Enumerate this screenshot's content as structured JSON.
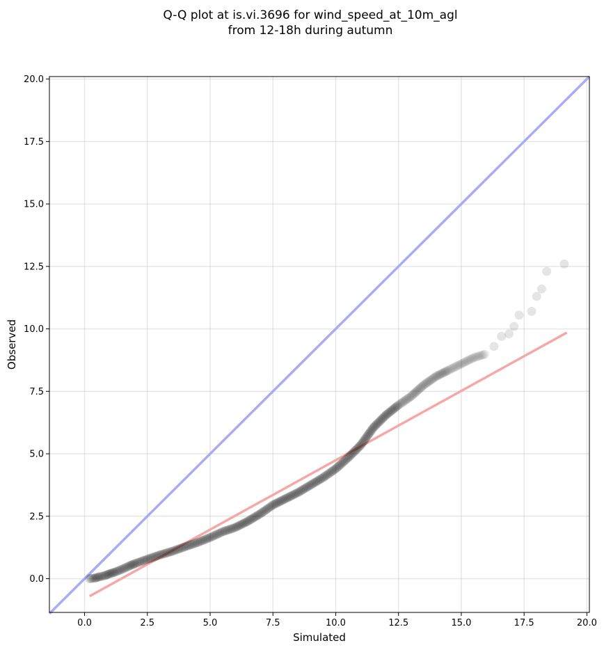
{
  "chart_data": {
    "type": "scatter",
    "title": [
      "Q-Q plot at is.vi.3696 for wind_speed_at_10m_agl",
      "from 12-18h during autumn"
    ],
    "xlabel": "Simulated",
    "ylabel": "Observed",
    "xlim": [
      -1.4,
      20.1
    ],
    "ylim": [
      -1.35,
      20.1
    ],
    "x_ticks": [
      "0.0",
      "2.5",
      "5.0",
      "7.5",
      "10.0",
      "12.5",
      "15.0",
      "17.5",
      "20.0"
    ],
    "y_ticks": [
      "0.0",
      "2.5",
      "5.0",
      "7.5",
      "10.0",
      "12.5",
      "15.0",
      "17.5",
      "20.0"
    ],
    "grid": true,
    "reference_line": {
      "name": "1:1 line",
      "from": [
        -1.4,
        -1.4
      ],
      "to": [
        20.1,
        20.1
      ],
      "color": "#a8abf5"
    },
    "fit_line": {
      "name": "linear fit",
      "from": [
        0.2,
        -0.7
      ],
      "to": [
        19.2,
        9.85
      ],
      "color": "#f5a8a8"
    },
    "point_color": "#000000",
    "curve_points": [
      [
        0.2,
        0.0
      ],
      [
        0.4,
        0.02
      ],
      [
        0.6,
        0.08
      ],
      [
        0.8,
        0.12
      ],
      [
        1.0,
        0.2
      ],
      [
        1.2,
        0.26
      ],
      [
        1.5,
        0.38
      ],
      [
        1.8,
        0.52
      ],
      [
        2.0,
        0.6
      ],
      [
        2.5,
        0.78
      ],
      [
        3.0,
        0.95
      ],
      [
        3.5,
        1.1
      ],
      [
        4.0,
        1.28
      ],
      [
        4.5,
        1.45
      ],
      [
        5.0,
        1.65
      ],
      [
        5.5,
        1.88
      ],
      [
        6.0,
        2.05
      ],
      [
        6.5,
        2.3
      ],
      [
        7.0,
        2.6
      ],
      [
        7.5,
        2.95
      ],
      [
        8.0,
        3.2
      ],
      [
        8.5,
        3.45
      ],
      [
        9.0,
        3.75
      ],
      [
        9.5,
        4.05
      ],
      [
        10.0,
        4.4
      ],
      [
        10.5,
        4.85
      ],
      [
        11.0,
        5.35
      ],
      [
        11.5,
        6.05
      ],
      [
        12.0,
        6.55
      ],
      [
        12.5,
        6.95
      ],
      [
        13.0,
        7.3
      ],
      [
        13.5,
        7.75
      ],
      [
        14.0,
        8.1
      ],
      [
        14.5,
        8.35
      ],
      [
        15.0,
        8.6
      ],
      [
        15.5,
        8.85
      ],
      [
        16.0,
        9.0
      ]
    ],
    "tail_points": [
      [
        16.3,
        9.3
      ],
      [
        16.6,
        9.7
      ],
      [
        16.9,
        9.8
      ],
      [
        17.1,
        10.1
      ],
      [
        17.3,
        10.55
      ],
      [
        17.8,
        10.7
      ],
      [
        18.0,
        11.3
      ],
      [
        18.2,
        11.6
      ],
      [
        18.4,
        12.3
      ],
      [
        19.1,
        12.6
      ]
    ]
  }
}
